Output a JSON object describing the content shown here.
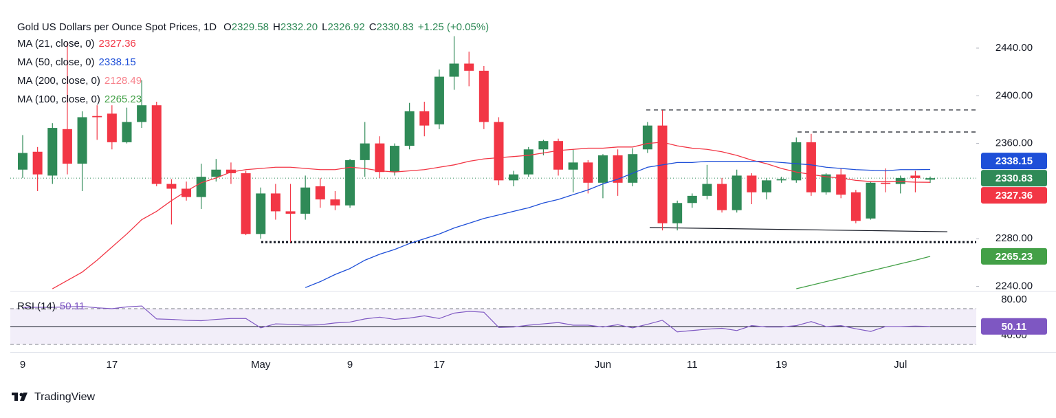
{
  "chart_data": {
    "type": "candlestick",
    "title": "Gold US Dollars per Ounce Spot Prices, 1D",
    "header_fields": [
      {
        "key": "O",
        "label": "2329.58"
      },
      {
        "key": "H",
        "label": "2332.20"
      },
      {
        "key": "L",
        "label": "2326.92"
      },
      {
        "key": "C",
        "label": "2330.83"
      }
    ],
    "change_label": "+1.25 (+0.05%)",
    "categories": [
      "9",
      null,
      null,
      null,
      null,
      null,
      "17",
      null,
      null,
      null,
      null,
      null,
      null,
      null,
      null,
      null,
      "May",
      null,
      null,
      null,
      null,
      null,
      "9",
      null,
      null,
      null,
      null,
      null,
      "17",
      null,
      null,
      null,
      null,
      null,
      null,
      null,
      null,
      null,
      null,
      "Jun",
      null,
      null,
      null,
      null,
      null,
      "11",
      null,
      null,
      null,
      null,
      null,
      "19",
      null,
      null,
      null,
      null,
      null,
      null,
      null,
      "Jul",
      null,
      null
    ],
    "open": [
      2338,
      2353,
      2333,
      2372,
      2343,
      2383,
      2385,
      2361,
      2378,
      2392,
      2326,
      2322,
      2315,
      2332,
      2338,
      2335,
      2284,
      2318,
      2303,
      2301,
      2324,
      2313,
      2308,
      2346,
      2360,
      2336,
      2358,
      2387,
      2376,
      2416,
      2427,
      2421,
      2378,
      2329,
      2334,
      2355,
      2362,
      2338,
      2344,
      2327,
      2350,
      2327,
      2355,
      2375,
      2293,
      2310,
      2316,
      2326,
      2304,
      2333,
      2319,
      2329,
      2329,
      2361,
      2319,
      2334,
      2319,
      2297,
      2327,
      2326,
      2333,
      2329.58
    ],
    "high": [
      2367,
      2357,
      2377,
      2445,
      2387,
      2392,
      2392,
      2390,
      2413,
      2395,
      2330,
      2328,
      2343,
      2347,
      2344,
      2337,
      2323,
      2326,
      2326,
      2333,
      2331,
      2320,
      2347,
      2378,
      2366,
      2360,
      2394,
      2395,
      2422,
      2450,
      2437,
      2425,
      2382,
      2337,
      2357,
      2363,
      2364,
      2355,
      2346,
      2351,
      2355,
      2356,
      2378,
      2388,
      2312,
      2318,
      2342,
      2331,
      2338,
      2335,
      2331,
      2332,
      2365,
      2368,
      2335,
      2339,
      2321,
      2328,
      2339,
      2333,
      2337,
      2332.2
    ],
    "low": [
      2331,
      2320,
      2326,
      2334,
      2320,
      2363,
      2355,
      2360,
      2373,
      2324,
      2292,
      2312,
      2305,
      2328,
      2326,
      2283,
      2280,
      2296,
      2277,
      2296,
      2306,
      2304,
      2306,
      2332,
      2331,
      2333,
      2355,
      2366,
      2372,
      2405,
      2408,
      2372,
      2325,
      2324,
      2332,
      2350,
      2333,
      2319,
      2318,
      2314,
      2316,
      2324,
      2352,
      2287,
      2287,
      2306,
      2313,
      2302,
      2302,
      2309,
      2313,
      2327,
      2327,
      2316,
      2317,
      2314,
      2293,
      2296,
      2319,
      2318,
      2319,
      2326.92
    ],
    "close": [
      2352,
      2334,
      2373,
      2343,
      2382,
      2382,
      2361,
      2378,
      2392,
      2326,
      2322,
      2315,
      2332,
      2338,
      2335,
      2284,
      2318,
      2303,
      2301,
      2323,
      2313,
      2308,
      2346,
      2360,
      2336,
      2358,
      2387,
      2375,
      2416,
      2427,
      2421,
      2378,
      2329,
      2334,
      2355,
      2362,
      2338,
      2344,
      2327,
      2350,
      2327,
      2351,
      2375,
      2293,
      2310,
      2316,
      2326,
      2304,
      2333,
      2319,
      2329,
      2330,
      2361,
      2319,
      2334,
      2317,
      2295,
      2327,
      2326,
      2331,
      2331,
      2330.83
    ],
    "up_color": "#2f8a57",
    "down_color": "#f23645",
    "ylim": [
      2236.3,
      2474.6
    ],
    "yticks": [
      {
        "value": 2240,
        "label": "2240.00"
      },
      {
        "value": 2280,
        "label": "2280.00"
      },
      {
        "value": 2360,
        "label": "2360.00"
      },
      {
        "value": 2400,
        "label": "2400.00"
      },
      {
        "value": 2440,
        "label": "2440.00"
      }
    ],
    "grid": false,
    "overlays": [
      {
        "name": "MA (21, close, 0)",
        "color": "#f23645",
        "values": [
          null,
          null,
          2238,
          2245,
          2252,
          2262,
          2273,
          2284,
          2296,
          2303,
          2312,
          2320,
          2327,
          2331,
          2336,
          2338,
          2339,
          2340,
          2340,
          2339,
          2338,
          2338,
          2340,
          2339,
          2337,
          2336,
          2337,
          2338,
          2340,
          2342,
          2345,
          2347,
          2348,
          2349,
          2350,
          2352,
          2354,
          2355,
          2356,
          2356,
          2357,
          2357,
          2360,
          2361,
          2358,
          2356,
          2355,
          2353,
          2350,
          2346,
          2343,
          2339,
          2336,
          2334,
          2332,
          2331,
          2329,
          2328,
          2328,
          2328,
          2327.5,
          2327.36
        ]
      },
      {
        "name": "MA (50, close, 0)",
        "color": "#1e4fd8",
        "values": [
          null,
          null,
          null,
          null,
          null,
          null,
          null,
          null,
          null,
          null,
          null,
          null,
          null,
          null,
          null,
          null,
          null,
          null,
          null,
          2239,
          2244,
          2250,
          2255,
          2262,
          2267,
          2271,
          2276,
          2280,
          2284,
          2289,
          2293,
          2297,
          2300,
          2303,
          2306,
          2310,
          2313,
          2317,
          2321,
          2326,
          2330,
          2335,
          2340,
          2342,
          2344,
          2344,
          2345,
          2345,
          2345,
          2345,
          2345,
          2344,
          2343,
          2342,
          2340,
          2339,
          2338,
          2337.5,
          2337,
          2338,
          2338,
          2338.15
        ]
      },
      {
        "name": "MA (200, close, 0)",
        "color": "#f7828c",
        "last": 2128.49
      },
      {
        "name": "MA (100, close, 0)",
        "color": "#43a047",
        "values": [
          null,
          null,
          null,
          null,
          null,
          null,
          null,
          null,
          null,
          null,
          null,
          null,
          null,
          null,
          null,
          null,
          null,
          null,
          null,
          null,
          null,
          null,
          null,
          null,
          null,
          null,
          null,
          null,
          null,
          null,
          null,
          null,
          null,
          null,
          null,
          null,
          null,
          null,
          null,
          null,
          null,
          null,
          null,
          null,
          null,
          null,
          null,
          null,
          null,
          null,
          null,
          null,
          2238,
          2241,
          2244,
          2247,
          2250,
          2253,
          2256,
          2259,
          2262,
          2265.23
        ]
      }
    ],
    "levels": [
      {
        "values": [
          2388.1,
          2388.1
        ],
        "style": "dashed"
      },
      {
        "values": [
          2369.6,
          2369.6
        ],
        "style": "dashed"
      },
      {
        "values": [
          2277.2,
          2277.2
        ],
        "style": "dotted"
      },
      {
        "values": [
          2289.4,
          2285.9
        ],
        "style": "solid"
      }
    ],
    "rsi": {
      "name": "RSI (14)",
      "color": "#7e57c2",
      "ylim": [
        23,
        90
      ],
      "yticks": [
        {
          "value": 80,
          "label": "80.00"
        },
        {
          "value": 40,
          "label": "40.00"
        }
      ],
      "band": [
        30,
        70
      ],
      "midline": 50,
      "values": [
        71.5,
        71.5,
        71.5,
        72,
        72.5,
        71,
        70,
        72,
        73,
        58.5,
        58,
        57,
        56.5,
        58,
        59,
        59,
        48.5,
        53,
        52.5,
        51.5,
        52,
        54,
        55,
        58.5,
        60.5,
        58,
        59.5,
        62,
        59,
        65,
        67,
        66,
        49,
        49.5,
        51.5,
        53,
        54.5,
        51.5,
        51.5,
        49.5,
        52,
        48.5,
        52.5,
        57,
        44,
        45.5,
        47,
        48,
        45.5,
        51,
        49.5,
        49.5,
        51,
        55.5,
        50,
        51,
        47.5,
        44.5,
        50,
        50,
        50.5,
        50.11
      ]
    },
    "branding": "TradingView"
  }
}
